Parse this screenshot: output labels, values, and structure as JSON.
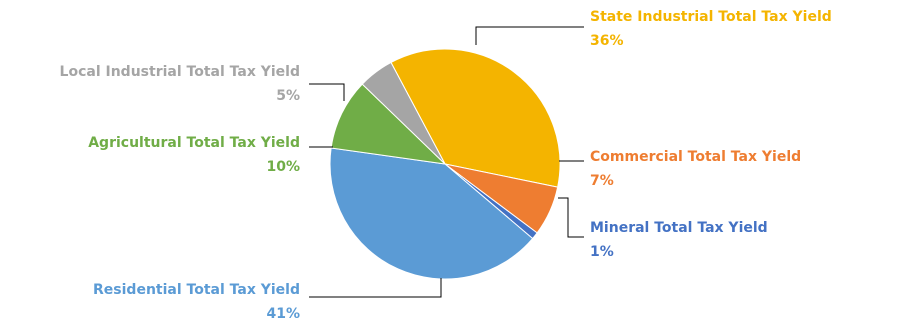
{
  "chart_data": {
    "type": "pie",
    "slices": [
      {
        "label": "State Industrial Total Tax Yield",
        "value": 36,
        "pct_label": "36%",
        "color": "#F4B400"
      },
      {
        "label": "Commercial Total Tax Yield",
        "value": 7,
        "pct_label": "7%",
        "color": "#EE7D31"
      },
      {
        "label": "Mineral Total Tax Yield",
        "value": 1,
        "pct_label": "1%",
        "color": "#4472C4"
      },
      {
        "label": "Residential Total Tax Yield",
        "value": 41,
        "pct_label": "41%",
        "color": "#5B9BD5"
      },
      {
        "label": "Agricultural Total Tax Yield",
        "value": 10,
        "pct_label": "10%",
        "color": "#70AD47"
      },
      {
        "label": "Local Industrial Total Tax Yield",
        "value": 5,
        "pct_label": "5%",
        "color": "#A5A5A5"
      }
    ],
    "legend": "none"
  }
}
